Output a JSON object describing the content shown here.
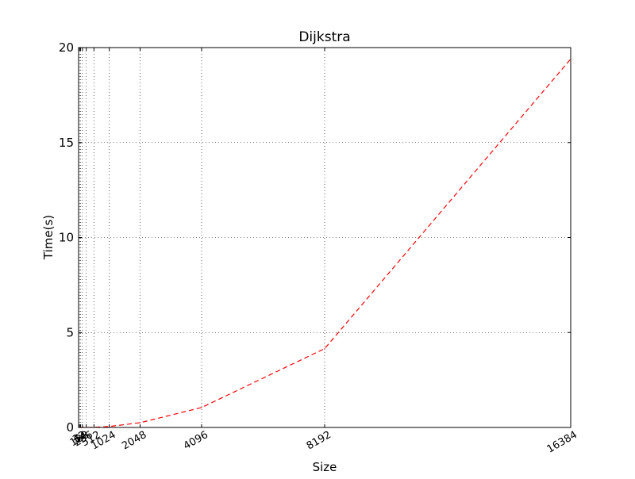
{
  "chart_data": {
    "type": "line",
    "title": "Dijkstra",
    "xlabel": "Size",
    "ylabel": "Time(s)",
    "xlim": [
      0,
      16384
    ],
    "ylim": [
      0,
      20
    ],
    "xticks": [
      32,
      64,
      128,
      256,
      512,
      1024,
      2048,
      4096,
      8192,
      16384
    ],
    "xtick_labels": [
      "32",
      "64",
      "128",
      "256",
      "512",
      "1024",
      "2048",
      "4096",
      "8192",
      "16384"
    ],
    "yticks": [
      0,
      5,
      10,
      15,
      20
    ],
    "ytick_labels": [
      "0",
      "5",
      "10",
      "15",
      "20"
    ],
    "grid": true,
    "line_color": "#ff0000",
    "line_style": "dashed",
    "series": [
      {
        "x": [
          32,
          64,
          128,
          256,
          512,
          1024,
          2048,
          4096,
          8192,
          16384
        ],
        "y": [
          0.0,
          0.0,
          0.0,
          0.0,
          0.01,
          0.05,
          0.25,
          1.05,
          4.15,
          19.4
        ]
      }
    ]
  }
}
